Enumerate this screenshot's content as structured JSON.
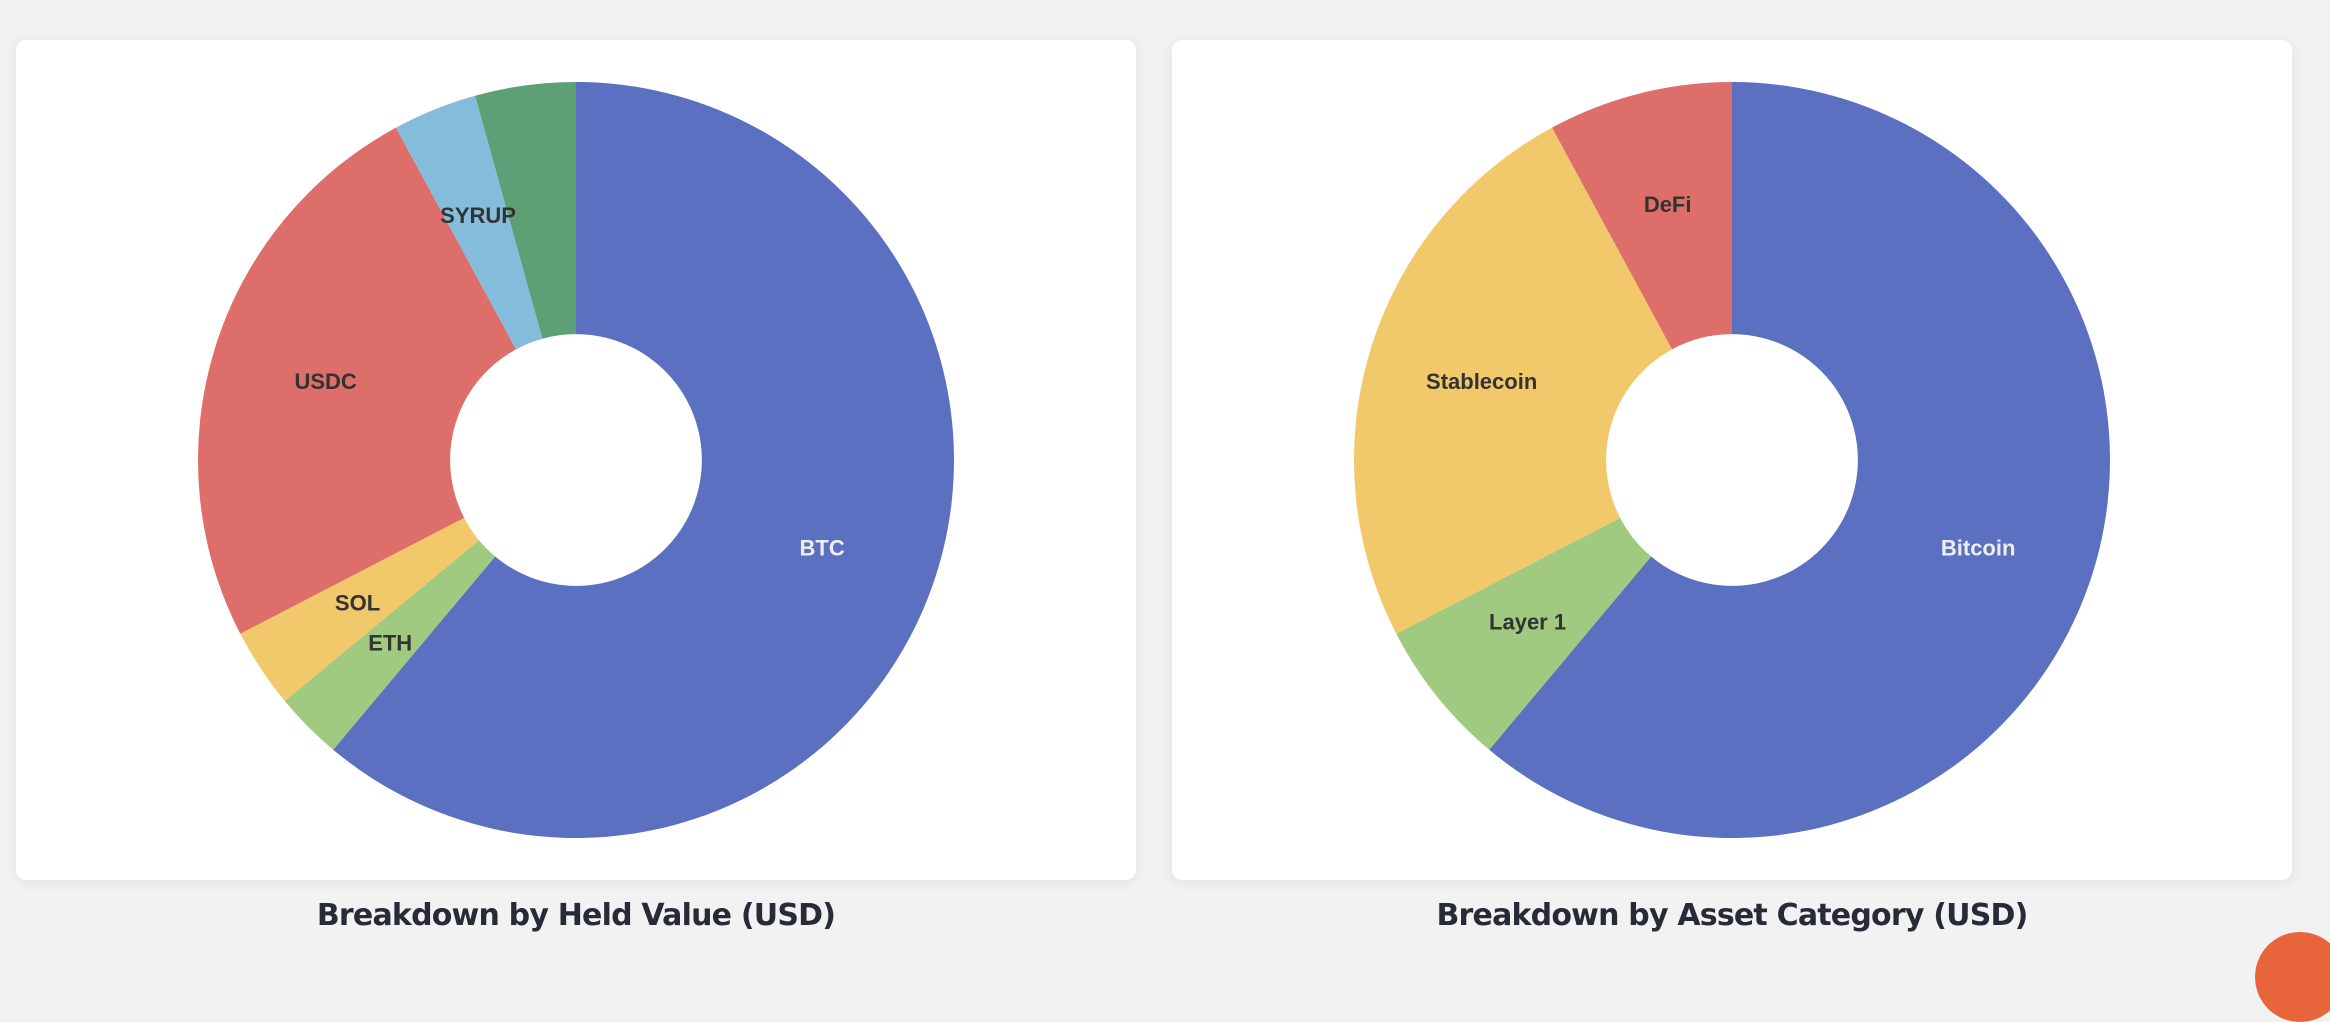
{
  "charts": [
    {
      "title": "Breakdown by Held Value (USD)"
    },
    {
      "title": "Breakdown by Asset Category (USD)"
    }
  ],
  "colors": {
    "blue": "#5b70c0",
    "green_light": "#9fca7f",
    "yellow": "#f1c96b",
    "red": "#de6e6a",
    "light_blue": "#84bcdb",
    "green_dark": "#5da075",
    "fab": "#e8643a"
  },
  "fab": {
    "icon": "chat-bubble-icon"
  },
  "chart_data": [
    {
      "type": "pie",
      "subtype": "donut",
      "title": "Breakdown by Held Value (USD)",
      "start_angle": "12 o'clock, clockwise",
      "inner_radius_ratio": 0.333,
      "legend": "none (labels on slices)",
      "categories": [
        "BTC",
        "ETH",
        "SOL",
        "USDC",
        "SYRUP",
        ""
      ],
      "values": [
        61.1,
        2.9,
        3.4,
        24.7,
        3.6,
        4.3
      ],
      "unit": "% of held value (estimated from slice angles)",
      "colors": [
        "#5b70c0",
        "#9fca7f",
        "#f1c96b",
        "#de6e6a",
        "#84bcdb",
        "#5da075"
      ],
      "label_colors": [
        "#eeeeee",
        "#333333",
        "#333333",
        "#333333",
        "#333333",
        "#333333"
      ]
    },
    {
      "type": "pie",
      "subtype": "donut",
      "title": "Breakdown by Asset Category (USD)",
      "start_angle": "12 o'clock, clockwise",
      "inner_radius_ratio": 0.333,
      "legend": "none (labels on slices)",
      "categories": [
        "Bitcoin",
        "Layer 1",
        "Stablecoin",
        "DeFi"
      ],
      "values": [
        61.1,
        6.3,
        24.7,
        7.9
      ],
      "unit": "% of value (estimated from slice angles)",
      "colors": [
        "#5b70c0",
        "#9fca7f",
        "#f1c96b",
        "#de6e6a"
      ],
      "label_colors": [
        "#eeeeee",
        "#333333",
        "#333333",
        "#333333"
      ]
    }
  ]
}
